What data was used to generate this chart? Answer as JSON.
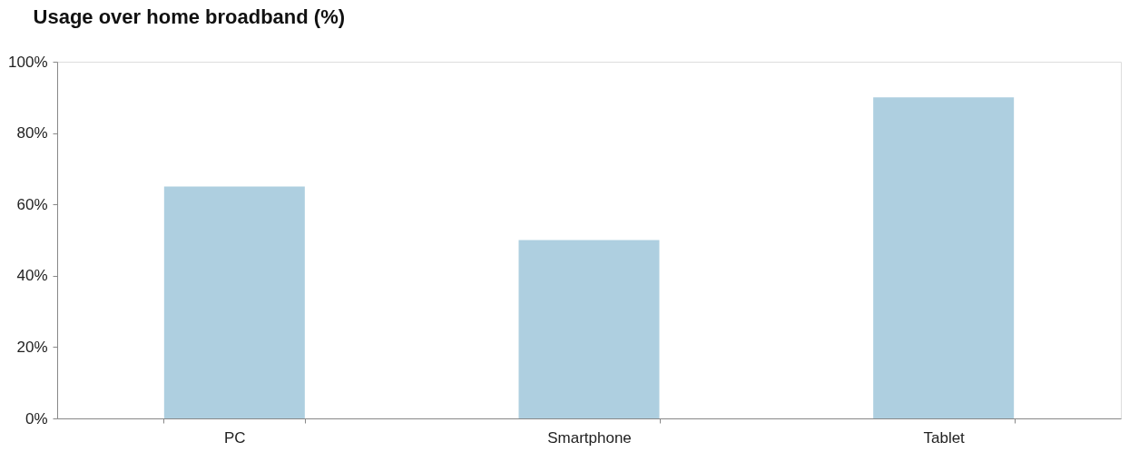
{
  "chart_data": {
    "type": "bar",
    "title": "Usage over home broadband (%)",
    "categories": [
      "PC",
      "Smartphone",
      "Tablet"
    ],
    "values": [
      65,
      50,
      90
    ],
    "color": "#aecfe0",
    "ylim": [
      0,
      100
    ],
    "yticks": [
      {
        "value": 0,
        "label": "0%"
      },
      {
        "value": 20,
        "label": "20%"
      },
      {
        "value": 40,
        "label": "40%"
      },
      {
        "value": 60,
        "label": "60%"
      },
      {
        "value": 80,
        "label": "80%"
      },
      {
        "value": 100,
        "label": "100%"
      }
    ],
    "grid": false
  }
}
